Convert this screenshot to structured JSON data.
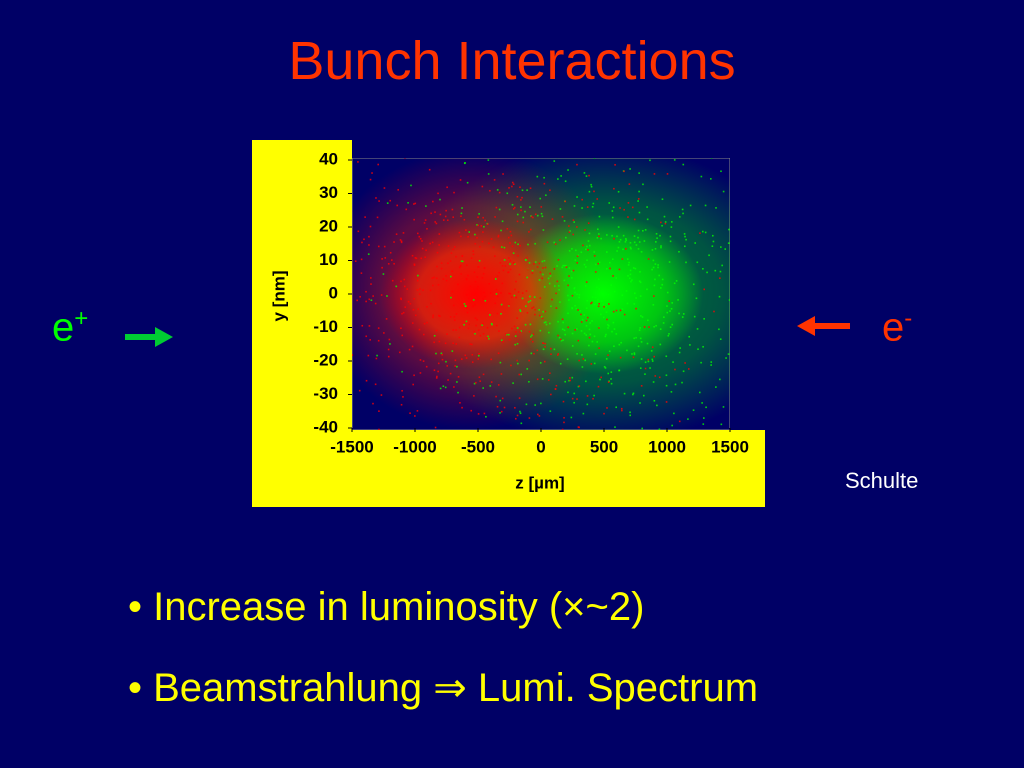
{
  "title": "Bunch Interactions",
  "beams": {
    "left": {
      "label": "e",
      "charge": "+"
    },
    "right": {
      "label": "e",
      "charge": "-"
    }
  },
  "chart_data": {
    "type": "scatter",
    "xlabel": "z [µm]",
    "ylabel": "y [nm]",
    "xlim": [
      -1500,
      1500
    ],
    "ylim": [
      -40,
      40
    ],
    "xticks": [
      -1500,
      -1000,
      -500,
      0,
      500,
      1000,
      1500
    ],
    "yticks": [
      -40,
      -30,
      -20,
      -10,
      0,
      10,
      20,
      30,
      40
    ]
  },
  "credit": "Schulte",
  "bullets": [
    "Increase in luminosity (×~2)",
    "Beamstrahlung ⇒ Lumi. Spectrum"
  ]
}
